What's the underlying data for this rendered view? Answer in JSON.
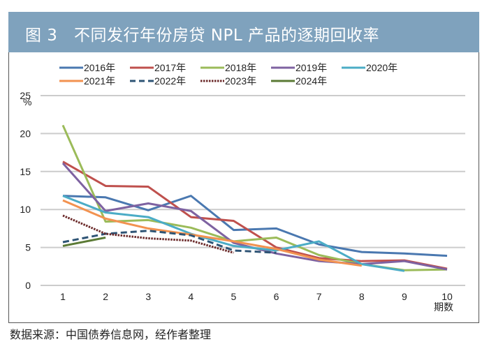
{
  "figure": {
    "title": "图 3　不同发行年份房贷 NPL 产品的逐期回收率",
    "source": "数据来源：中国债券信息网，经作者整理"
  },
  "colors": {
    "title_bar": "#7fa2bd",
    "gridline": "#cccccc"
  },
  "chart_data": {
    "type": "line",
    "title": "不同发行年份房贷 NPL 产品的逐期回收率",
    "xlabel": "期数",
    "ylabel": "%",
    "x": [
      1,
      2,
      3,
      4,
      5,
      6,
      7,
      8,
      9,
      10
    ],
    "x_tick_labels": [
      "1",
      "2",
      "3",
      "4",
      "5",
      "6",
      "7",
      "8",
      "9",
      "10"
    ],
    "y_ticks": [
      0,
      5,
      10,
      15,
      20,
      25
    ],
    "y_tick_labels": [
      "0",
      "5",
      "10",
      "15",
      "20",
      "25"
    ],
    "ylim": [
      0,
      25
    ],
    "grid": "horizontal",
    "legend_position": "top",
    "series": [
      {
        "name": "2016年",
        "color": "#4a78b0",
        "style": "solid",
        "values": [
          11.8,
          11.6,
          9.9,
          11.8,
          7.3,
          7.5,
          5.4,
          4.4,
          4.2,
          3.9
        ]
      },
      {
        "name": "2017年",
        "color": "#bf504d",
        "style": "solid",
        "values": [
          16.3,
          13.1,
          13.0,
          9.0,
          8.5,
          5.0,
          3.6,
          3.2,
          3.3,
          2.2
        ]
      },
      {
        "name": "2018年",
        "color": "#9bbb59",
        "style": "solid",
        "values": [
          21.1,
          8.4,
          8.6,
          7.6,
          5.8,
          6.3,
          4.0,
          2.8,
          2.0,
          2.1
        ]
      },
      {
        "name": "2019年",
        "color": "#7e62a1",
        "style": "solid",
        "values": [
          16.1,
          9.8,
          10.8,
          9.8,
          5.6,
          4.2,
          3.2,
          2.8,
          3.2,
          2.1
        ]
      },
      {
        "name": "2020年",
        "color": "#4bacc6",
        "style": "solid",
        "values": [
          11.8,
          9.6,
          9.0,
          6.8,
          5.2,
          4.6,
          5.8,
          2.8,
          1.9
        ]
      },
      {
        "name": "2021年",
        "color": "#f29250",
        "style": "solid",
        "values": [
          11.2,
          8.8,
          7.5,
          6.7,
          5.8,
          4.8,
          3.4,
          2.6
        ]
      },
      {
        "name": "2022年",
        "color": "#2e5475",
        "style": "dashed",
        "values": [
          5.7,
          6.8,
          7.2,
          6.6,
          4.6,
          4.3
        ]
      },
      {
        "name": "2023年",
        "color": "#6b2a2a",
        "style": "dotted",
        "values": [
          9.2,
          6.8,
          6.2,
          5.9,
          4.3
        ]
      },
      {
        "name": "2024年",
        "color": "#5b7a35",
        "style": "solid",
        "values": [
          5.2,
          6.3
        ]
      }
    ]
  }
}
